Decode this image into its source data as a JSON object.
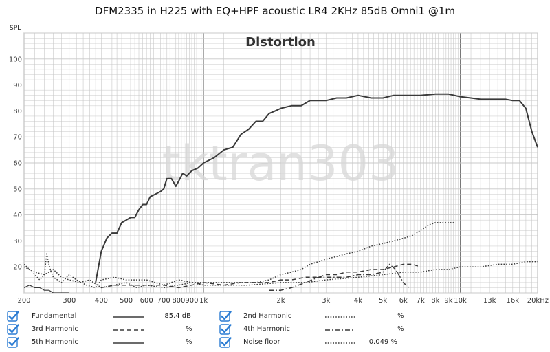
{
  "title": "DFM2335 in H225 with EQ+HPF acoustic LR4 2KHz 85dB Omni1 @1m",
  "colors": {
    "curve": "#3a3a3a",
    "grid": "#c8c8c8",
    "grid_major": "#777777",
    "checkbox": "#2b7cd3",
    "watermark": "#d8d8d8"
  },
  "chart_data": {
    "type": "line",
    "title": "Distortion",
    "watermark": "tktran303",
    "ylabel": "SPL",
    "xscale": "log",
    "xlim": [
      200,
      20000
    ],
    "ylim": [
      10,
      110
    ],
    "x_ticks": [
      {
        "v": 200,
        "label": "200"
      },
      {
        "v": 300,
        "label": "300"
      },
      {
        "v": 400,
        "label": "400"
      },
      {
        "v": 500,
        "label": "500"
      },
      {
        "v": 600,
        "label": "600"
      },
      {
        "v": 700,
        "label": "700"
      },
      {
        "v": 800,
        "label": "800"
      },
      {
        "v": 900,
        "label": "900"
      },
      {
        "v": 1000,
        "label": "1k"
      },
      {
        "v": 2000,
        "label": "2k"
      },
      {
        "v": 3000,
        "label": "3k"
      },
      {
        "v": 4000,
        "label": "4k"
      },
      {
        "v": 5000,
        "label": "5k"
      },
      {
        "v": 6000,
        "label": "6k"
      },
      {
        "v": 7000,
        "label": "7k"
      },
      {
        "v": 8000,
        "label": "8k"
      },
      {
        "v": 9000,
        "label": "9k"
      },
      {
        "v": 10000,
        "label": "10k"
      },
      {
        "v": 13000,
        "label": "13k"
      },
      {
        "v": 16000,
        "label": "16k"
      },
      {
        "v": 20000,
        "label": "20kHz"
      }
    ],
    "y_ticks": [
      20,
      30,
      40,
      50,
      60,
      70,
      80,
      90,
      100
    ],
    "grid": true,
    "series": [
      {
        "name": "Fundamental",
        "style": "solid",
        "width": 2,
        "x": [
          380,
          400,
          420,
          440,
          460,
          480,
          500,
          520,
          540,
          560,
          580,
          600,
          620,
          650,
          680,
          700,
          720,
          750,
          780,
          800,
          830,
          860,
          900,
          950,
          1000,
          1100,
          1200,
          1300,
          1400,
          1500,
          1600,
          1700,
          1800,
          1900,
          2000,
          2200,
          2400,
          2600,
          2800,
          3000,
          3300,
          3600,
          4000,
          4500,
          5000,
          5500,
          6000,
          7000,
          8000,
          9000,
          10000,
          11000,
          12000,
          13000,
          14000,
          15000,
          16000,
          17000,
          18000,
          19000,
          19500,
          20000
        ],
        "y": [
          14,
          26,
          31,
          33,
          33,
          37,
          38,
          39,
          39,
          42,
          44,
          44,
          47,
          48,
          49,
          50,
          54,
          54,
          51,
          53,
          56,
          55,
          57,
          58,
          60,
          62,
          65,
          66,
          71,
          73,
          76,
          76,
          79,
          80,
          81,
          82,
          82,
          84,
          84,
          84,
          85,
          85,
          86,
          85,
          85,
          86,
          86,
          86,
          86.5,
          86.5,
          85.5,
          85,
          84.5,
          84.5,
          84.5,
          84.5,
          84,
          84,
          81,
          72,
          69,
          66
        ]
      },
      {
        "name": "2nd Harmonic",
        "style": "dotted",
        "width": 1.5,
        "x": [
          200,
          220,
          240,
          260,
          280,
          300,
          330,
          360,
          400,
          450,
          500,
          550,
          600,
          700,
          800,
          900,
          1000,
          1200,
          1400,
          1600,
          1800,
          2000,
          2200,
          2400,
          2600,
          2800,
          3000,
          3300,
          3600,
          4000,
          4500,
          5000,
          5500,
          6000,
          6500,
          7000,
          7500,
          8000,
          8500,
          9000,
          9500
        ],
        "y": [
          20,
          18,
          17,
          19,
          16,
          15,
          14,
          15,
          12,
          13,
          14,
          12,
          13,
          12,
          13,
          14,
          14,
          14,
          14,
          14,
          15,
          17,
          18,
          19,
          21,
          22,
          23,
          24,
          25,
          26,
          28,
          29,
          30,
          31,
          32,
          34,
          36,
          37,
          37,
          37,
          37
        ]
      },
      {
        "name": "3rd Harmonic",
        "style": "dashed",
        "width": 1.5,
        "x": [
          400,
          450,
          500,
          600,
          700,
          800,
          900,
          1000,
          1200,
          1400,
          1600,
          1800,
          2000,
          2200,
          2500,
          2800,
          3000,
          3300,
          3600,
          4000,
          4500,
          5000,
          5500,
          6000,
          6500,
          7000
        ],
        "y": [
          12,
          13,
          13,
          13,
          13,
          12,
          13,
          14,
          13,
          14,
          14,
          14,
          15,
          15,
          16,
          16,
          17,
          17,
          18,
          18,
          19,
          19,
          20,
          21,
          21,
          20
        ]
      },
      {
        "name": "4th Harmonic",
        "style": "dashdot",
        "width": 1.5,
        "x": [
          1800,
          2000,
          2200,
          2500,
          2800,
          3000,
          3300,
          3600,
          4000,
          4500,
          5000,
          5300,
          5600,
          6000,
          6300
        ],
        "y": [
          11,
          11,
          12,
          14,
          16,
          16,
          16,
          16,
          17,
          17,
          18,
          21,
          19,
          14,
          12
        ]
      },
      {
        "name": "5th Harmonic",
        "style": "solid",
        "width": 1.2,
        "x": [
          200,
          210,
          220,
          230,
          240,
          250,
          260,
          270,
          280,
          300
        ],
        "y": [
          12,
          13,
          12,
          12,
          11,
          11,
          10,
          10,
          10,
          10
        ]
      },
      {
        "name": "Noise floor",
        "style": "dotted",
        "width": 1.5,
        "x": [
          200,
          210,
          220,
          230,
          240,
          245,
          250,
          255,
          260,
          270,
          280,
          300,
          320,
          350,
          380,
          400,
          450,
          500,
          600,
          700,
          800,
          900,
          1000,
          1200,
          1500,
          2000,
          2500,
          3000,
          4000,
          5000,
          6000,
          7000,
          8000,
          9000,
          10000,
          12000,
          14000,
          16000,
          18000,
          20000
        ],
        "y": [
          21,
          19,
          17,
          15,
          17,
          25,
          21,
          18,
          16,
          15,
          14,
          17,
          15,
          13,
          12,
          15,
          16,
          15,
          15,
          13,
          15,
          14,
          13,
          13,
          13,
          14,
          14,
          15,
          16,
          17,
          18,
          18,
          19,
          19,
          20,
          20,
          21,
          21,
          22,
          22
        ]
      }
    ]
  },
  "legend": {
    "left": [
      {
        "label": "Fundamental",
        "value": "85.4 dB",
        "unit": "",
        "style": "solid"
      },
      {
        "label": "3rd Harmonic",
        "value": "",
        "unit": "%",
        "style": "dashed"
      },
      {
        "label": "5th Harmonic",
        "value": "",
        "unit": "%",
        "style": "solid"
      }
    ],
    "right": [
      {
        "label": "2nd Harmonic",
        "value": "",
        "unit": "%",
        "style": "dotted"
      },
      {
        "label": "4th Harmonic",
        "value": "",
        "unit": "%",
        "style": "dashdot"
      },
      {
        "label": "Noise floor",
        "value": "0.049 %",
        "unit": "",
        "style": "dotted"
      }
    ]
  }
}
